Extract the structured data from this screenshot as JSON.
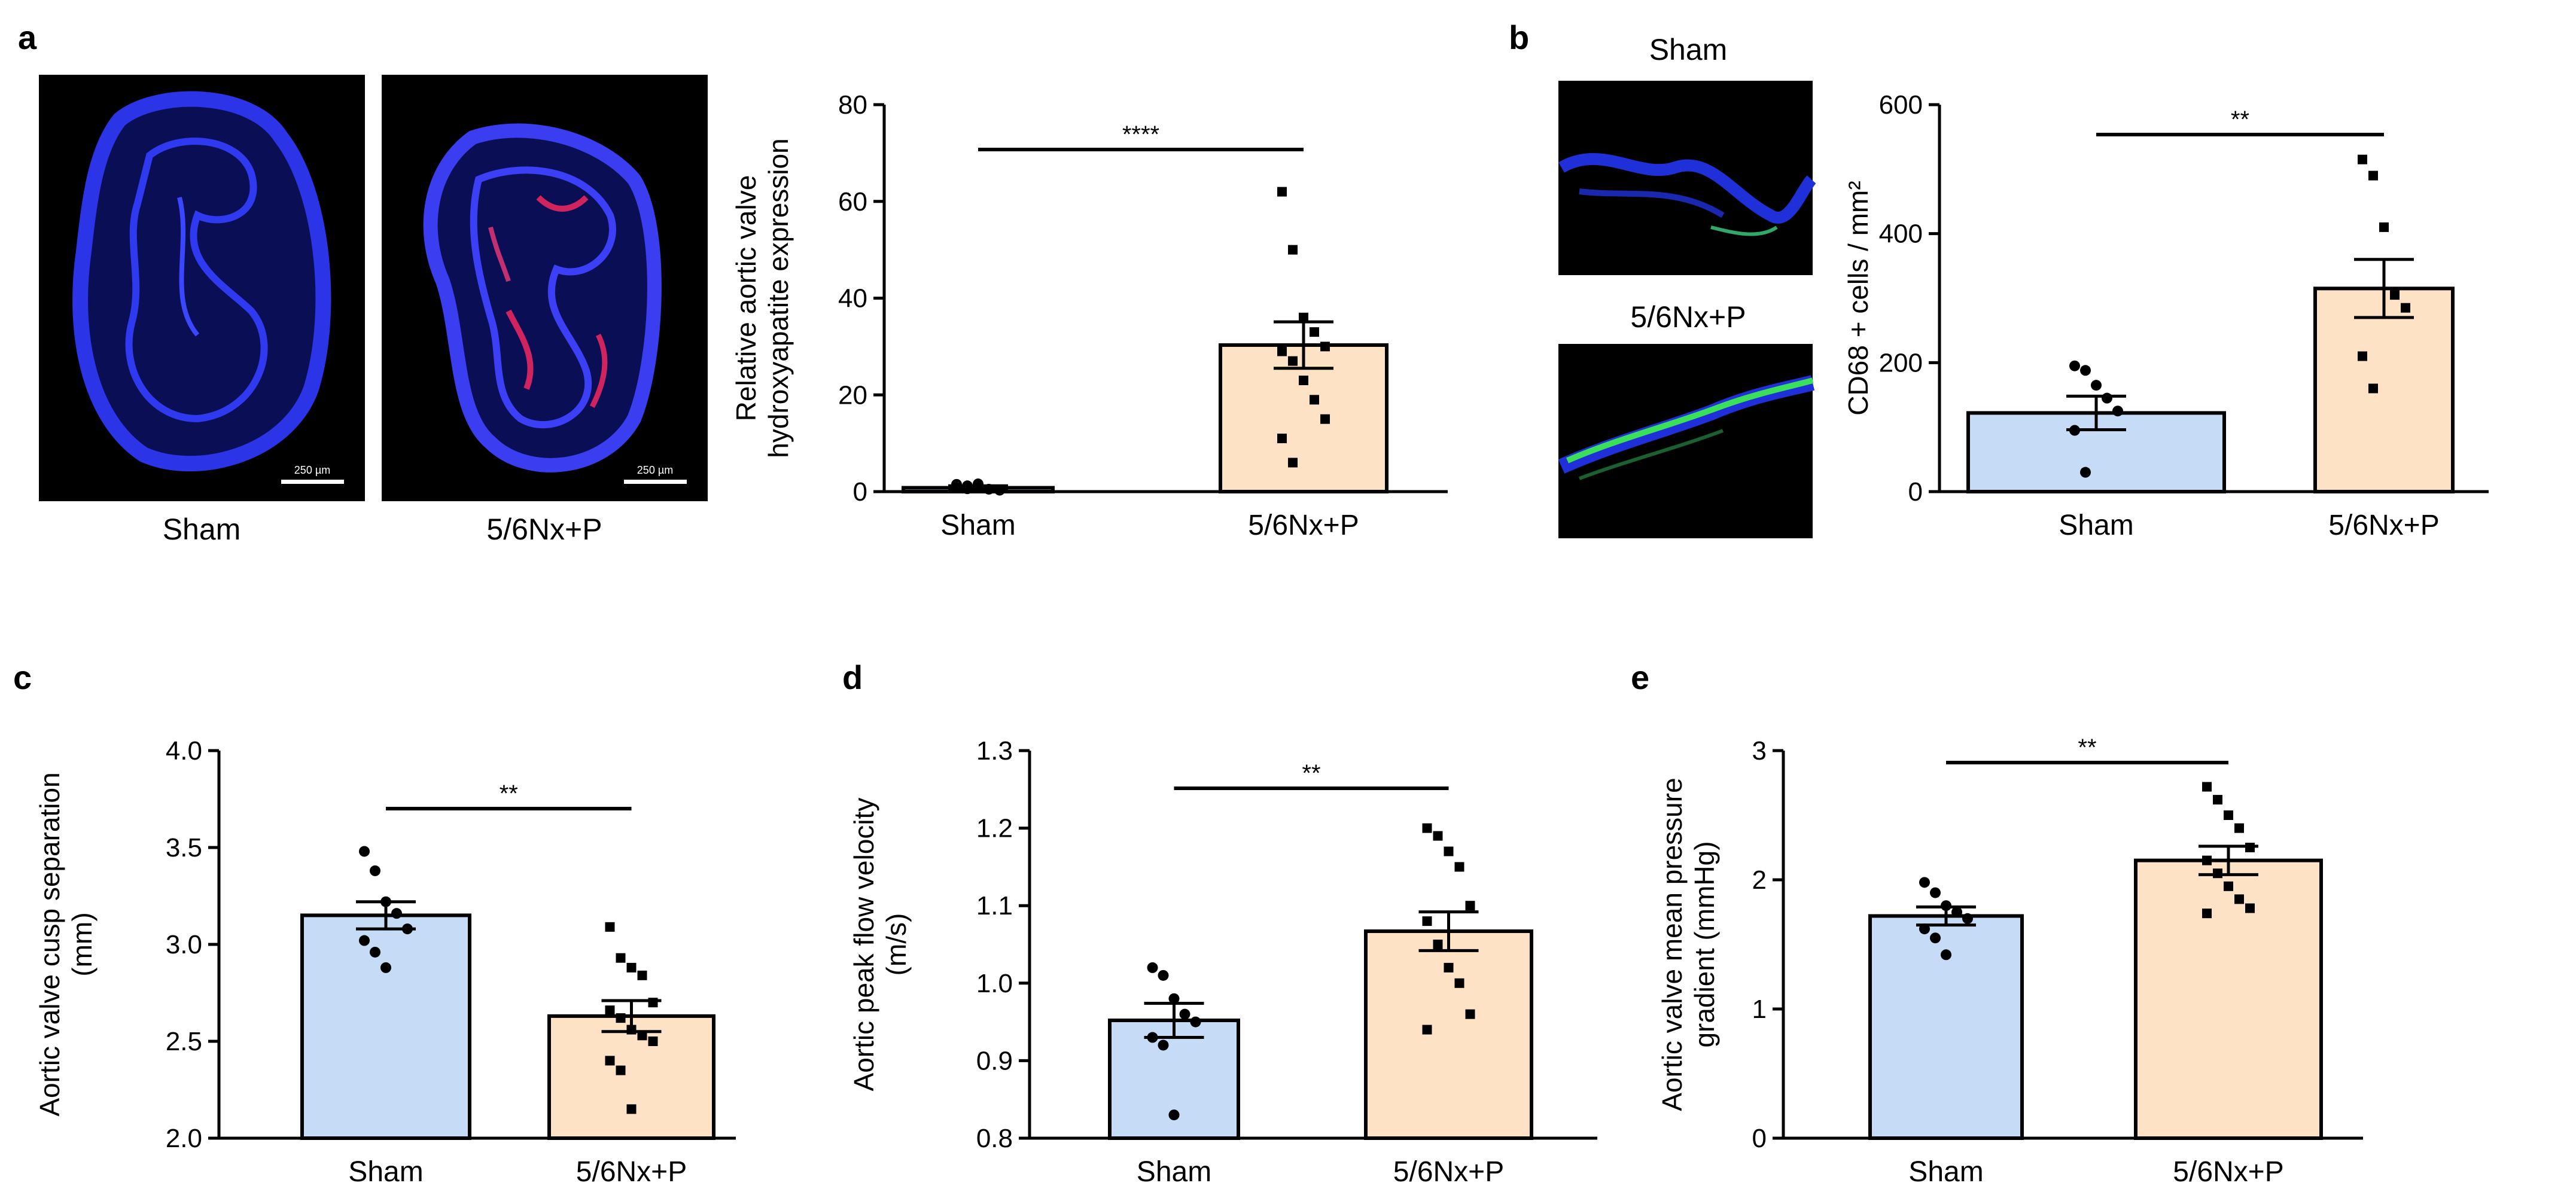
{
  "figure": {
    "panel_letters": [
      "a",
      "b",
      "c",
      "d",
      "e"
    ],
    "micrograph_captions": [
      "Sham",
      "5/6Nx+P"
    ],
    "stain_captions": [
      "Sham",
      "5/6Nx+P"
    ],
    "scale_bar_label": "250 µm"
  },
  "colors": {
    "sham_fill": "#c6dbf5",
    "treat_fill": "#fde2c5",
    "bar_stroke": "#000000",
    "dapi_blue": "#1a2cd6",
    "red_signal": "#d0245f",
    "green_signal": "#3be05a"
  },
  "chart_data": [
    {
      "id": "a",
      "type": "bar",
      "title": "",
      "ylabel": [
        "Relative aortic valve",
        "hydroxyapatite expression"
      ],
      "xlabel": "",
      "categories": [
        "Sham",
        "5/6Nx+P"
      ],
      "values": [
        0.8,
        30.3
      ],
      "sem": [
        0.4,
        4.8
      ],
      "ylim": [
        0,
        80
      ],
      "yticks": [
        0,
        20,
        40,
        60,
        80
      ],
      "ytick_labels": [
        "0",
        "20",
        "40",
        "60",
        "80"
      ],
      "significance": "****",
      "points": [
        [
          1.5,
          1.2,
          0.8,
          0.5,
          0.3,
          1.0,
          0.6,
          1.6
        ],
        [
          62,
          50,
          36,
          33,
          30,
          29,
          27,
          23,
          19,
          15,
          11,
          6
        ]
      ]
    },
    {
      "id": "b",
      "type": "bar",
      "title": "",
      "ylabel": [
        "CD68 + cells / mm²"
      ],
      "xlabel": "",
      "categories": [
        "Sham",
        "5/6Nx+P"
      ],
      "values": [
        122,
        315
      ],
      "sem": [
        26,
        45
      ],
      "ylim": [
        0,
        600
      ],
      "yticks": [
        0,
        200,
        400,
        600
      ],
      "ytick_labels": [
        "0",
        "200",
        "400",
        "600"
      ],
      "significance": "**",
      "points": [
        [
          195,
          188,
          165,
          145,
          125,
          95,
          30
        ],
        [
          515,
          490,
          410,
          305,
          285,
          210,
          160
        ]
      ]
    },
    {
      "id": "c",
      "type": "bar",
      "title": "",
      "ylabel": [
        "Aortic valve cusp separation",
        "(mm)"
      ],
      "xlabel": "",
      "categories": [
        "Sham",
        "5/6Nx+P"
      ],
      "values": [
        3.15,
        2.63
      ],
      "sem": [
        0.07,
        0.08
      ],
      "ylim": [
        2.0,
        4.0
      ],
      "yticks": [
        2.0,
        2.5,
        3.0,
        3.5,
        4.0
      ],
      "ytick_labels": [
        "2.0",
        "2.5",
        "3.0",
        "3.5",
        "4.0"
      ],
      "significance": "**",
      "points": [
        [
          3.48,
          3.38,
          3.22,
          3.16,
          3.08,
          3.02,
          2.96,
          2.88
        ],
        [
          3.09,
          2.93,
          2.88,
          2.84,
          2.7,
          2.66,
          2.62,
          2.56,
          2.53,
          2.5,
          2.4,
          2.35,
          2.15
        ]
      ]
    },
    {
      "id": "d",
      "type": "bar",
      "title": "",
      "ylabel": [
        "Aortic peak flow velocity",
        "(m/s)"
      ],
      "xlabel": "",
      "categories": [
        "Sham",
        "5/6Nx+P"
      ],
      "values": [
        0.952,
        1.067
      ],
      "sem": [
        0.022,
        0.025
      ],
      "ylim": [
        0.8,
        1.3
      ],
      "yticks": [
        0.8,
        0.9,
        1.0,
        1.1,
        1.2,
        1.3
      ],
      "ytick_labels": [
        "0.8",
        "0.9",
        "1.0",
        "1.1",
        "1.2",
        "1.3"
      ],
      "significance": "**",
      "points": [
        [
          1.02,
          1.01,
          0.98,
          0.96,
          0.95,
          0.93,
          0.92,
          0.83
        ],
        [
          1.2,
          1.19,
          1.17,
          1.15,
          1.1,
          1.08,
          1.05,
          1.02,
          1.0,
          0.96,
          0.94
        ]
      ]
    },
    {
      "id": "e",
      "type": "bar",
      "title": "",
      "ylabel": [
        "Aortic valve mean pressure",
        "gradient (mmHg)"
      ],
      "xlabel": "",
      "categories": [
        "Sham",
        "5/6Nx+P"
      ],
      "values": [
        1.72,
        2.15
      ],
      "sem": [
        0.07,
        0.11
      ],
      "ylim": [
        0,
        3
      ],
      "yticks": [
        0,
        1,
        2,
        3
      ],
      "ytick_labels": [
        "0",
        "1",
        "2",
        "3"
      ],
      "significance": "**",
      "points": [
        [
          1.98,
          1.9,
          1.8,
          1.75,
          1.7,
          1.62,
          1.55,
          1.42
        ],
        [
          2.72,
          2.62,
          2.5,
          2.4,
          2.25,
          2.15,
          2.05,
          1.95,
          1.85,
          1.78,
          1.74
        ]
      ]
    }
  ]
}
